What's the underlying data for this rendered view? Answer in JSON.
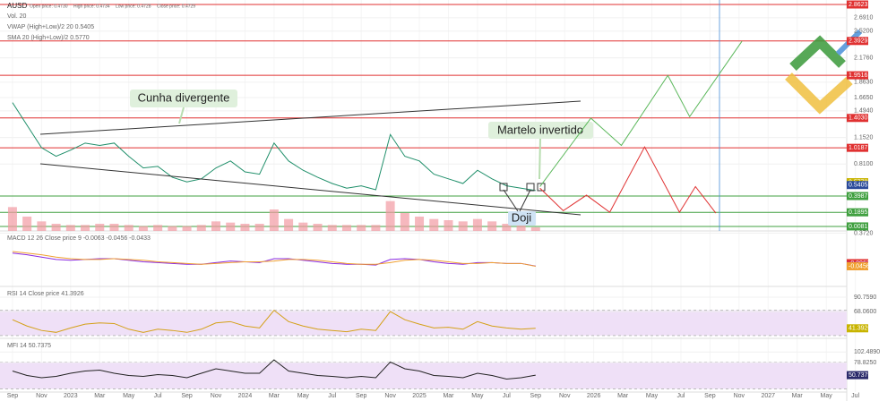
{
  "chart_data": [
    {
      "type": "line",
      "title": "AUSD",
      "stats": [
        "Open price: 0.4730",
        "High price: 0.4734",
        "Low price: 0.4728",
        "Close price: 0.4729"
      ],
      "indicators": [
        "Vol. 20",
        "VWAP (High+Low)/2 20 0.5405",
        "SMA 20 (High+Low)/2 0.5770"
      ],
      "annotations": [
        "Cunha divergente",
        "Martelo invertido",
        "Doji"
      ],
      "xlim": [
        -0.86,
        60.8
      ],
      "ylim": [
        -0.05,
        2.92
      ],
      "xticks": [
        {
          "value": 0,
          "label": "Sep"
        },
        {
          "value": 2,
          "label": "Nov"
        },
        {
          "value": 4,
          "label": "2023"
        },
        {
          "value": 6,
          "label": "Mar"
        },
        {
          "value": 8,
          "label": "May"
        },
        {
          "value": 10,
          "label": "Jul"
        },
        {
          "value": 12,
          "label": "Sep"
        },
        {
          "value": 14,
          "label": "Nov"
        },
        {
          "value": 16,
          "label": "2024"
        },
        {
          "value": 18,
          "label": "Mar"
        },
        {
          "value": 20,
          "label": "May"
        },
        {
          "value": 22,
          "label": "Jul"
        },
        {
          "value": 24,
          "label": "Sep"
        },
        {
          "value": 26,
          "label": "Nov"
        },
        {
          "value": 28,
          "label": "2025"
        },
        {
          "value": 30,
          "label": "Mar"
        },
        {
          "value": 32,
          "label": "May"
        },
        {
          "value": 34,
          "label": "Jul"
        },
        {
          "value": 36,
          "label": "Sep"
        },
        {
          "value": 38,
          "label": "Nov"
        },
        {
          "value": 40,
          "label": "2026"
        },
        {
          "value": 42,
          "label": "Mar"
        },
        {
          "value": 44,
          "label": "May"
        },
        {
          "value": 46,
          "label": "Jul"
        },
        {
          "value": 48,
          "label": "Sep"
        },
        {
          "value": 50,
          "label": "Nov"
        },
        {
          "value": 52,
          "label": "2027"
        },
        {
          "value": 54,
          "label": "Mar"
        },
        {
          "value": 56,
          "label": "May"
        },
        {
          "value": 58,
          "label": "Jul"
        }
      ],
      "yticks": [
        {
          "value": 2.691,
          "label": "2.6910"
        },
        {
          "value": 2.52,
          "label": "2.5200"
        },
        {
          "value": 2.176,
          "label": "2.1760"
        },
        {
          "value": 1.863,
          "label": "1.8630"
        },
        {
          "value": 1.665,
          "label": "1.6650"
        },
        {
          "value": 1.494,
          "label": "1.4940"
        },
        {
          "value": 1.152,
          "label": "1.1520"
        },
        {
          "value": 0.81,
          "label": "0.8100"
        }
      ],
      "levels": [
        {
          "value": 2.8623,
          "label": "2.8623",
          "color": "#e03131"
        },
        {
          "value": 2.3929,
          "label": "2.3929",
          "color": "#e03131"
        },
        {
          "value": 1.9516,
          "label": "1.9516",
          "color": "#e03131"
        },
        {
          "value": 1.403,
          "label": "1.4030",
          "color": "#e03131"
        },
        {
          "value": 1.0187,
          "label": "1.0187",
          "color": "#e03131"
        },
        {
          "value": 0.3987,
          "label": "0.3987",
          "color": "#40a040"
        },
        {
          "value": 0.1895,
          "label": "0.1895",
          "color": "#40a040"
        },
        {
          "value": 0.0081,
          "label": "0.0081",
          "color": "#40a040"
        }
      ],
      "markers": [
        {
          "value": 0.577,
          "label": "0.5770",
          "color": "#c8b400"
        },
        {
          "value": 0.5405,
          "label": "0.5405",
          "color": "#2a4a9a"
        }
      ],
      "x": [
        0,
        1,
        2,
        3,
        4,
        5,
        6,
        7,
        8,
        9,
        10,
        11,
        12,
        13,
        14,
        15,
        16,
        17,
        18,
        19,
        20,
        21,
        22,
        23,
        24,
        25,
        26,
        27,
        28,
        29,
        30,
        31,
        32,
        33,
        34,
        35,
        36
      ],
      "series": [
        {
          "color": "#1f8f6a",
          "values": [
            1.6,
            1.31,
            1.02,
            0.91,
            0.99,
            1.08,
            1.05,
            1.08,
            0.91,
            0.76,
            0.78,
            0.64,
            0.58,
            0.62,
            0.76,
            0.85,
            0.71,
            0.68,
            1.08,
            0.85,
            0.73,
            0.64,
            0.56,
            0.5,
            0.53,
            0.48,
            1.19,
            0.91,
            0.85,
            0.68,
            0.62,
            0.56,
            0.73,
            0.62,
            0.53,
            0.5,
            0.47
          ]
        }
      ],
      "volume": {
        "color": "#f29aa3",
        "values": [
          20,
          12,
          8,
          6,
          5,
          5,
          6,
          6,
          5,
          4,
          5,
          4,
          4,
          5,
          8,
          7,
          6,
          6,
          18,
          10,
          7,
          6,
          5,
          5,
          5,
          5,
          25,
          15,
          12,
          10,
          9,
          8,
          10,
          8,
          6,
          5,
          3
        ],
        "ylim": [
          0,
          60
        ]
      },
      "bull_path": {
        "color": "#5cb85c",
        "x": [
          36.3,
          39.8,
          41.9,
          45.1,
          46.6,
          50.2
        ],
        "values": [
          0.52,
          1.4,
          1.05,
          1.95,
          1.42,
          2.39
        ]
      },
      "bear_path": {
        "color": "#e03131",
        "x": [
          36.3,
          37.9,
          39.5,
          41.1,
          43.5,
          45.9,
          47.0,
          48.4
        ],
        "values": [
          0.5,
          0.21,
          0.41,
          0.19,
          1.03,
          0.19,
          0.52,
          0.18
        ]
      }
    },
    {
      "type": "line",
      "title": "MACD 12 26 Close price 9 -0.0063 -0.0456 -0.0433",
      "xlim": [
        -0.86,
        60.8
      ],
      "ylim": [
        -0.3,
        0.4
      ],
      "yticks": [
        {
          "value": 0.372,
          "label": "0.3720"
        }
      ],
      "markers": [
        {
          "value": -0.0063,
          "label": "-0.0063",
          "color": "#e03131"
        },
        {
          "value": -0.0433,
          "label": "-0.0433",
          "color": "#8a2be2"
        },
        {
          "value": -0.0456,
          "label": "-0.0456",
          "color": "#f0a030"
        }
      ],
      "x": [
        0,
        1,
        2,
        3,
        4,
        5,
        6,
        7,
        8,
        9,
        10,
        11,
        12,
        13,
        14,
        15,
        16,
        17,
        18,
        19,
        20,
        21,
        22,
        23,
        24,
        25,
        26,
        27,
        28,
        29,
        30,
        31,
        32,
        33,
        34,
        35,
        36
      ],
      "series": [
        {
          "color": "#8a2be2",
          "values": [
            0.12,
            0.1,
            0.07,
            0.04,
            0.03,
            0.04,
            0.05,
            0.05,
            0.03,
            0.01,
            0,
            -0.01,
            -0.02,
            -0.02,
            0,
            0.02,
            0.01,
            0,
            0.05,
            0.05,
            0.03,
            0.01,
            -0.01,
            -0.02,
            -0.02,
            -0.03,
            0.04,
            0.05,
            0.04,
            0.01,
            -0.01,
            -0.02,
            0,
            0,
            -0.01,
            -0.01,
            -0.0433
          ]
        },
        {
          "color": "#f0a030",
          "values": [
            0.14,
            0.12,
            0.1,
            0.07,
            0.05,
            0.04,
            0.04,
            0.05,
            0.04,
            0.03,
            0.01,
            0,
            -0.01,
            -0.02,
            -0.01,
            0,
            0.01,
            0.01,
            0.02,
            0.04,
            0.04,
            0.03,
            0.01,
            -0.01,
            -0.02,
            -0.02,
            0,
            0.03,
            0.04,
            0.03,
            0.01,
            -0.01,
            -0.01,
            0,
            -0.01,
            -0.01,
            -0.0456
          ]
        }
      ]
    },
    {
      "type": "line",
      "title": "RSI 14 Close price 41.3926",
      "xlim": [
        -0.86,
        60.8
      ],
      "ylim": [
        25.5,
        107.8
      ],
      "band": [
        30,
        70
      ],
      "yticks": [
        {
          "value": 90.759,
          "label": "90.7590"
        },
        {
          "value": 68.06,
          "label": "68.0600"
        }
      ],
      "markers": [
        {
          "value": 41.3926,
          "label": "41.3926",
          "color": "#c8b400"
        }
      ],
      "x": [
        0,
        1,
        2,
        3,
        4,
        5,
        6,
        7,
        8,
        9,
        10,
        11,
        12,
        13,
        14,
        15,
        16,
        17,
        18,
        19,
        20,
        21,
        22,
        23,
        24,
        25,
        26,
        27,
        28,
        29,
        30,
        31,
        32,
        33,
        34,
        35,
        36
      ],
      "series": [
        {
          "color": "#d4a017",
          "values": [
            55,
            45,
            38,
            35,
            42,
            48,
            50,
            49,
            40,
            35,
            40,
            38,
            35,
            40,
            50,
            52,
            45,
            42,
            70,
            52,
            45,
            40,
            38,
            36,
            40,
            38,
            68,
            55,
            48,
            42,
            43,
            40,
            52,
            45,
            42,
            40,
            41.3926
          ]
        }
      ]
    },
    {
      "type": "line",
      "title": "MFI 14 50.7375",
      "xlim": [
        -0.86,
        60.8
      ],
      "ylim": [
        13,
        132.9
      ],
      "band": [
        20,
        80
      ],
      "yticks": [
        {
          "value": 102.489,
          "label": "102.4890"
        },
        {
          "value": 78.825,
          "label": "78.8250"
        }
      ],
      "markers": [
        {
          "value": 50.7375,
          "label": "50.7375",
          "color": "#2a2a6a"
        }
      ],
      "x": [
        0,
        1,
        2,
        3,
        4,
        5,
        6,
        7,
        8,
        9,
        10,
        11,
        12,
        13,
        14,
        15,
        16,
        17,
        18,
        19,
        20,
        21,
        22,
        23,
        24,
        25,
        26,
        27,
        28,
        29,
        30,
        31,
        32,
        33,
        34,
        35,
        36
      ],
      "series": [
        {
          "color": "#222222",
          "values": [
            60,
            50,
            45,
            48,
            55,
            60,
            62,
            55,
            50,
            48,
            52,
            50,
            45,
            55,
            65,
            60,
            55,
            55,
            85,
            60,
            55,
            50,
            48,
            45,
            48,
            45,
            80,
            65,
            60,
            50,
            48,
            45,
            55,
            50,
            42,
            45,
            50.7375
          ]
        }
      ]
    }
  ]
}
